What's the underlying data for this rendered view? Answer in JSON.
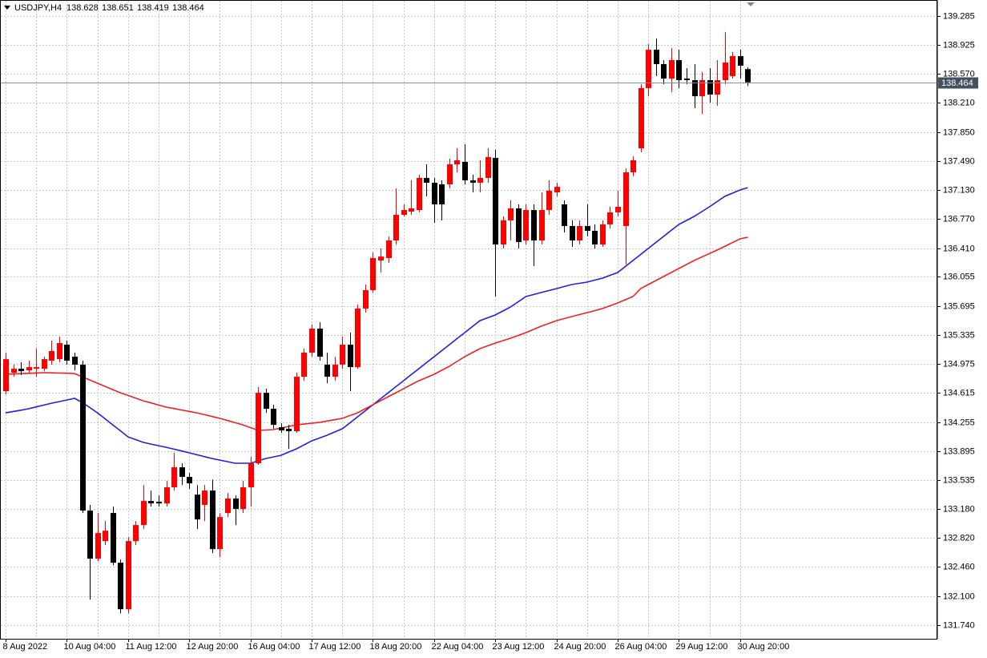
{
  "chart_data": {
    "type": "candlestick",
    "title": "USDJPY,H4",
    "categories": [
      "8 Aug 2022",
      null,
      null,
      null,
      null,
      null,
      null,
      null,
      "10 Aug 04:00",
      null,
      null,
      null,
      null,
      null,
      null,
      null,
      "11 Aug 12:00",
      null,
      null,
      null,
      null,
      null,
      null,
      null,
      "12 Aug 20:00",
      null,
      null,
      null,
      null,
      null,
      null,
      null,
      "16 Aug 04:00",
      null,
      null,
      null,
      null,
      null,
      null,
      null,
      "17 Aug 12:00",
      null,
      null,
      null,
      null,
      null,
      null,
      null,
      "18 Aug 20:00",
      null,
      null,
      null,
      null,
      null,
      null,
      null,
      "22 Aug 04:00",
      null,
      null,
      null,
      null,
      null,
      null,
      null,
      "23 Aug 12:00",
      null,
      null,
      null,
      null,
      null,
      null,
      null,
      "24 Aug 20:00",
      null,
      null,
      null,
      null,
      null,
      null,
      null,
      "26 Aug 04:00",
      null,
      null,
      null,
      null,
      null,
      null,
      null,
      "29 Aug 12:00",
      null,
      null,
      null,
      null,
      null,
      null,
      null,
      "30 Aug 20:00",
      null
    ],
    "open": [
      134.638,
      134.867,
      134.916,
      134.896,
      134.916,
      134.916,
      135.016,
      135.035,
      135.214,
      135.065,
      134.966,
      133.159,
      132.563,
      132.781,
      133.129,
      132.513,
      131.937,
      132.781,
      132.98,
      133.278,
      133.268,
      133.248,
      133.447,
      133.695,
      133.576,
      133.357,
      133.229,
      133.407,
      132.682,
      133.129,
      133.308,
      133.179,
      133.447,
      133.745,
      134.618,
      134.42,
      134.191,
      134.172,
      134.142,
      134.817,
      135.115,
      135.413,
      134.966,
      134.817,
      134.966,
      135.214,
      134.936,
      135.661,
      135.889,
      136.257,
      136.287,
      136.505,
      136.823,
      136.863,
      136.882,
      137.28,
      137.22,
      137.2,
      137.2,
      137.448,
      137.478,
      137.25,
      137.22,
      137.28,
      137.528,
      136.455,
      136.754,
      136.902,
      136.505,
      136.882,
      136.505,
      136.882,
      137.101,
      136.952,
      136.684,
      136.505,
      136.684,
      136.624,
      136.455,
      136.704,
      136.853,
      136.684,
      137.349,
      137.647,
      138.392,
      138.868,
      138.69,
      138.511,
      138.739,
      138.511,
      138.491,
      138.292,
      138.491,
      138.312,
      138.491,
      138.541,
      138.789,
      138.628
    ],
    "high": [
      135.115,
      134.966,
      134.996,
      135.016,
      135.165,
      135.065,
      135.264,
      135.313,
      135.264,
      135.115,
      135.016,
      133.229,
      133.129,
      133.029,
      133.208,
      132.553,
      132.831,
      133.029,
      133.476,
      133.407,
      133.347,
      133.526,
      133.874,
      133.745,
      133.625,
      133.476,
      133.476,
      133.546,
      133.129,
      133.377,
      133.347,
      133.526,
      133.824,
      134.688,
      134.668,
      134.469,
      134.241,
      134.221,
      134.867,
      135.165,
      135.462,
      135.492,
      135.115,
      135.065,
      135.313,
      135.363,
      135.711,
      135.959,
      136.356,
      136.406,
      136.555,
      137.15,
      136.952,
      137.25,
      137.319,
      137.448,
      137.28,
      137.25,
      137.518,
      137.647,
      137.697,
      137.319,
      137.498,
      137.647,
      137.627,
      136.803,
      137.002,
      136.952,
      136.952,
      136.952,
      137.101,
      137.25,
      137.22,
      137.002,
      136.754,
      136.754,
      136.952,
      136.704,
      136.754,
      136.922,
      137.121,
      137.399,
      137.548,
      138.441,
      138.938,
      139.007,
      138.739,
      138.888,
      138.868,
      138.64,
      138.69,
      138.59,
      138.64,
      138.739,
      139.087,
      138.839,
      138.868,
      138.651
    ],
    "low": [
      134.599,
      134.817,
      134.837,
      134.857,
      134.817,
      134.886,
      134.966,
      134.996,
      134.966,
      134.896,
      133.129,
      132.056,
      132.533,
      132.732,
      132.483,
      131.888,
      131.888,
      132.732,
      132.93,
      133.208,
      133.208,
      133.208,
      133.407,
      133.476,
      133.427,
      132.93,
      133.029,
      132.632,
      132.583,
      133.079,
      132.98,
      133.129,
      133.208,
      133.725,
      134.37,
      134.172,
      134.122,
      133.923,
      134.122,
      134.767,
      135.065,
      135.016,
      134.737,
      134.767,
      134.916,
      134.638,
      134.916,
      135.611,
      135.86,
      136.108,
      136.227,
      136.455,
      136.803,
      136.823,
      136.853,
      137.051,
      136.724,
      136.754,
      137.15,
      137.349,
      137.2,
      137.101,
      137.101,
      137.22,
      135.81,
      136.406,
      136.505,
      136.406,
      136.455,
      136.187,
      136.455,
      136.823,
      137.051,
      136.605,
      136.426,
      136.455,
      136.555,
      136.406,
      136.426,
      136.654,
      136.803,
      136.207,
      137.3,
      137.597,
      138.292,
      138.541,
      138.441,
      138.342,
      138.392,
      138.441,
      138.143,
      138.074,
      138.213,
      138.173,
      138.441,
      138.511,
      138.511,
      138.419
    ],
    "close": [
      135.035,
      134.916,
      134.886,
      134.936,
      134.936,
      135.035,
      135.135,
      135.234,
      135.016,
      134.966,
      133.159,
      132.563,
      132.881,
      132.91,
      132.513,
      131.937,
      132.781,
      132.98,
      133.278,
      133.248,
      133.248,
      133.447,
      133.695,
      133.576,
      133.496,
      133.049,
      133.407,
      132.682,
      133.079,
      133.308,
      133.179,
      133.447,
      133.745,
      134.618,
      134.42,
      134.221,
      134.152,
      134.142,
      134.817,
      135.115,
      135.413,
      135.065,
      134.817,
      134.966,
      135.214,
      134.936,
      135.661,
      135.889,
      136.287,
      136.306,
      136.505,
      136.823,
      136.882,
      136.902,
      137.28,
      137.22,
      136.952,
      136.952,
      137.448,
      137.498,
      137.25,
      137.22,
      137.28,
      137.538,
      136.455,
      136.754,
      136.902,
      136.485,
      136.882,
      136.505,
      136.882,
      137.121,
      137.17,
      136.684,
      136.505,
      136.684,
      136.624,
      136.455,
      136.704,
      136.853,
      136.922,
      137.349,
      137.498,
      138.392,
      138.868,
      138.69,
      138.511,
      138.739,
      138.491,
      138.491,
      138.292,
      138.491,
      138.312,
      138.491,
      138.709,
      138.789,
      138.67,
      138.464
    ],
    "up_color": "#ff0000",
    "down_color": "#000000",
    "lines": [
      {
        "color": "#2020e0",
        "values": [
          134.37,
          134.387,
          134.403,
          134.42,
          134.443,
          134.466,
          134.489,
          134.509,
          134.529,
          134.549,
          134.499,
          134.435,
          134.37,
          134.296,
          134.221,
          134.147,
          134.072,
          134.038,
          134.003,
          133.983,
          133.963,
          133.943,
          133.92,
          133.897,
          133.874,
          133.851,
          133.827,
          133.804,
          133.784,
          133.765,
          133.745,
          133.745,
          133.745,
          133.775,
          133.804,
          133.824,
          133.844,
          133.884,
          133.923,
          133.973,
          134.022,
          134.057,
          134.092,
          134.132,
          134.172,
          134.246,
          134.32,
          134.395,
          134.469,
          134.544,
          134.618,
          134.693,
          134.767,
          134.842,
          134.916,
          134.991,
          135.065,
          135.14,
          135.214,
          135.289,
          135.363,
          135.438,
          135.512,
          135.547,
          135.582,
          135.632,
          135.681,
          135.746,
          135.81,
          135.835,
          135.86,
          135.885,
          135.909,
          135.934,
          135.959,
          135.974,
          135.989,
          136.014,
          136.038,
          136.073,
          136.108,
          136.183,
          136.257,
          136.332,
          136.406,
          136.481,
          136.555,
          136.63,
          136.704,
          136.754,
          136.803,
          136.863,
          136.922,
          136.987,
          137.051,
          137.091,
          137.131,
          137.16
        ]
      },
      {
        "color": "#f02020",
        "values": [
          134.847,
          134.851,
          134.855,
          134.859,
          134.863,
          134.867,
          134.865,
          134.862,
          134.86,
          134.857,
          134.817,
          134.777,
          134.737,
          134.697,
          134.658,
          134.618,
          134.585,
          134.552,
          134.519,
          134.493,
          134.466,
          134.44,
          134.423,
          134.405,
          134.388,
          134.37,
          134.347,
          134.324,
          134.301,
          134.274,
          134.248,
          134.221,
          134.187,
          134.152,
          134.157,
          134.162,
          134.182,
          134.201,
          134.221,
          134.231,
          134.241,
          134.251,
          134.268,
          134.284,
          134.301,
          134.336,
          134.37,
          134.42,
          134.469,
          134.519,
          134.569,
          134.618,
          134.668,
          134.718,
          134.767,
          134.807,
          134.847,
          134.897,
          134.946,
          135.006,
          135.065,
          135.115,
          135.165,
          135.2,
          135.234,
          135.264,
          135.294,
          135.329,
          135.363,
          135.403,
          135.443,
          135.478,
          135.512,
          135.537,
          135.562,
          135.587,
          135.611,
          135.636,
          135.661,
          135.696,
          135.731,
          135.771,
          135.81,
          135.909,
          135.959,
          136.009,
          136.059,
          136.108,
          136.158,
          136.208,
          136.257,
          136.3,
          136.343,
          136.386,
          136.432,
          136.479,
          136.525,
          136.545
        ]
      }
    ],
    "ylim": [
      131.571,
      139.454
    ],
    "yticks": [
      139.285,
      138.925,
      {
        "value": 138.57,
        "label": "138.570"
      },
      {
        "value": 138.21,
        "label": "138.210"
      },
      {
        "value": 137.85,
        "label": "137.850"
      },
      {
        "value": 137.49,
        "label": "137.490"
      },
      {
        "value": 137.13,
        "label": "137.130"
      },
      {
        "value": 136.77,
        "label": "136.770"
      },
      {
        "value": 136.41,
        "label": "136.410"
      },
      136.055,
      135.695,
      135.335,
      134.975,
      134.615,
      134.255,
      133.895,
      133.535,
      {
        "value": 133.18,
        "label": "133.180"
      },
      {
        "value": 132.82,
        "label": "132.820"
      },
      {
        "value": 132.46,
        "label": "132.460"
      },
      {
        "value": 132.1,
        "label": "132.100"
      },
      {
        "value": 131.74,
        "label": "131.740"
      }
    ],
    "grid": true
  }
}
